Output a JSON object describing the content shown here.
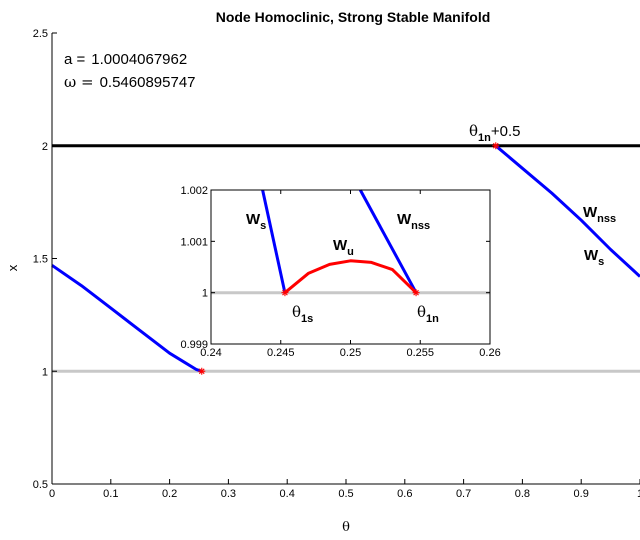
{
  "chart_data": {
    "type": "line",
    "title": "Node Homoclinic, Strong Stable Manifold",
    "xlabel": "θ",
    "ylabel": "x",
    "xlim": [
      0,
      1
    ],
    "ylim": [
      0.5,
      2.5
    ],
    "xticks": [
      0,
      0.1,
      0.2,
      0.3,
      0.4,
      0.5,
      0.6,
      0.7,
      0.8,
      0.9,
      1
    ],
    "xtick_labels": [
      "0",
      "0.1",
      "0.2",
      "0.3",
      "0.4",
      "0.5",
      "0.6",
      "0.7",
      "0.8",
      "0.9",
      "1"
    ],
    "yticks": [
      0.5,
      1,
      1.5,
      2,
      2.5
    ],
    "ytick_labels": [
      "0.5",
      "1",
      "1.5",
      "2",
      "2.5"
    ],
    "grid": false,
    "parameters": {
      "a_label": "a =",
      "a_value": "1.0004067962",
      "omega_label": "ω =",
      "omega_value": "0.5460895747"
    },
    "series": [
      {
        "name": "",
        "color": "#0000ff",
        "x": [
          0,
          0.05,
          0.1,
          0.15,
          0.2,
          0.225,
          0.245,
          0.2547
        ],
        "y": [
          1.47,
          1.38,
          1.28,
          1.18,
          1.08,
          1.04,
          1.008,
          1.0
        ]
      },
      {
        "name": "",
        "color": "#0000ff",
        "x": [
          0.7547,
          0.8,
          0.85,
          0.9,
          0.95,
          1.0
        ],
        "y": [
          2.0,
          1.9,
          1.79,
          1.67,
          1.54,
          1.42
        ]
      },
      {
        "name": "",
        "color": "#000000",
        "x": [
          0,
          1
        ],
        "y": [
          2,
          2
        ]
      },
      {
        "name": "",
        "color": "#c8c8c8",
        "x": [
          0,
          1
        ],
        "y": [
          1,
          1
        ]
      }
    ],
    "markers": [
      {
        "x": 0.2547,
        "y": 1.0,
        "color": "#ff0000"
      },
      {
        "x": 0.7547,
        "y": 2.0,
        "color": "#ff0000"
      }
    ],
    "annotations": [
      {
        "id": "theta-shift",
        "main": "θ",
        "sub": "1n",
        "suffix": "+0.5"
      },
      {
        "id": "wnss-outer",
        "main": "W",
        "sub": "nss"
      },
      {
        "id": "ws-outer",
        "main": "W",
        "sub": "s"
      }
    ],
    "inset": {
      "xlim": [
        0.24,
        0.26
      ],
      "ylim": [
        0.999,
        1.002
      ],
      "xticks": [
        0.24,
        0.245,
        0.25,
        0.255,
        0.26
      ],
      "xtick_labels": [
        "0.24",
        "0.245",
        "0.25",
        "0.255",
        "0.26"
      ],
      "yticks": [
        0.999,
        1,
        1.001,
        1.002
      ],
      "ytick_labels": [
        "0.999",
        "1",
        "1.001",
        "1.002"
      ],
      "series": [
        {
          "name": "",
          "color": "#c8c8c8",
          "x": [
            0.24,
            0.26
          ],
          "y": [
            1,
            1
          ]
        },
        {
          "name": "",
          "color": "#0000ff",
          "x": [
            0.2437,
            0.2453
          ],
          "y": [
            1.002,
            1.0
          ]
        },
        {
          "name": "",
          "color": "#0000ff",
          "x": [
            0.2507,
            0.2547
          ],
          "y": [
            1.002,
            1.0
          ]
        },
        {
          "name": "",
          "color": "#ff0000",
          "x": [
            0.2453,
            0.247,
            0.2485,
            0.25,
            0.2515,
            0.253,
            0.2547
          ],
          "y": [
            1.0,
            1.00038,
            1.00055,
            1.00062,
            1.00059,
            1.00045,
            1.0
          ]
        }
      ],
      "markers": [
        {
          "x": 0.2453,
          "y": 1.0,
          "color": "#ff0000"
        },
        {
          "x": 0.2547,
          "y": 1.0,
          "color": "#ff0000"
        }
      ],
      "annotations": [
        {
          "id": "ws-inset",
          "main": "W",
          "sub": "s"
        },
        {
          "id": "wu-inset",
          "main": "W",
          "sub": "u"
        },
        {
          "id": "wnss-inset",
          "main": "W",
          "sub": "nss"
        },
        {
          "id": "theta-1s",
          "main": "θ",
          "sub": "1s"
        },
        {
          "id": "theta-1n",
          "main": "θ",
          "sub": "1n"
        }
      ]
    }
  }
}
